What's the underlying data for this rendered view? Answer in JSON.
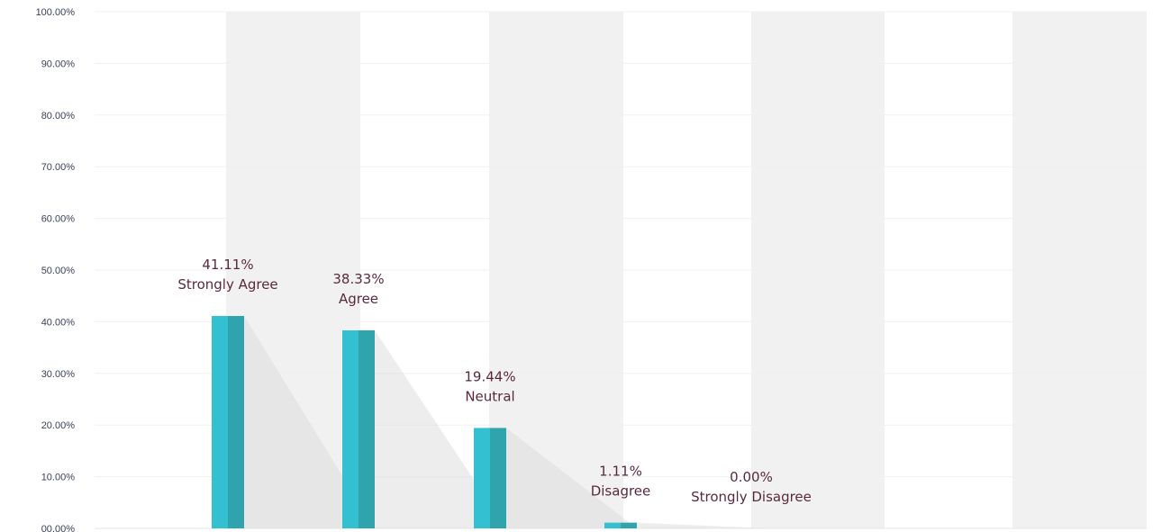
{
  "chart_data": {
    "type": "bar",
    "categories": [
      "Strongly Agree",
      "Agree",
      "Neutral",
      "Disagree",
      "Strongly Disagree"
    ],
    "values": [
      41.11,
      38.33,
      19.44,
      1.11,
      0.0
    ],
    "value_labels": [
      "41.11%",
      "38.33%",
      "19.44%",
      "1.11%",
      "0.00%"
    ],
    "y_ticks": [
      "00.00%",
      "10.00%",
      "20.00%",
      "30.00%",
      "40.00%",
      "50.00%",
      "60.00%",
      "70.00%",
      "80.00%",
      "90.00%",
      "100.00%"
    ],
    "ylim": [
      0,
      100
    ],
    "grid": true,
    "title": "",
    "xlabel": "",
    "ylabel": ""
  },
  "colors": {
    "bar_light": "#33c1d1",
    "bar_dark": "#2fa4ad",
    "label": "#5a2a3a",
    "tick": "#3a3f5c",
    "band": "#f1f1f1",
    "shadow": "#dcdcdc"
  }
}
